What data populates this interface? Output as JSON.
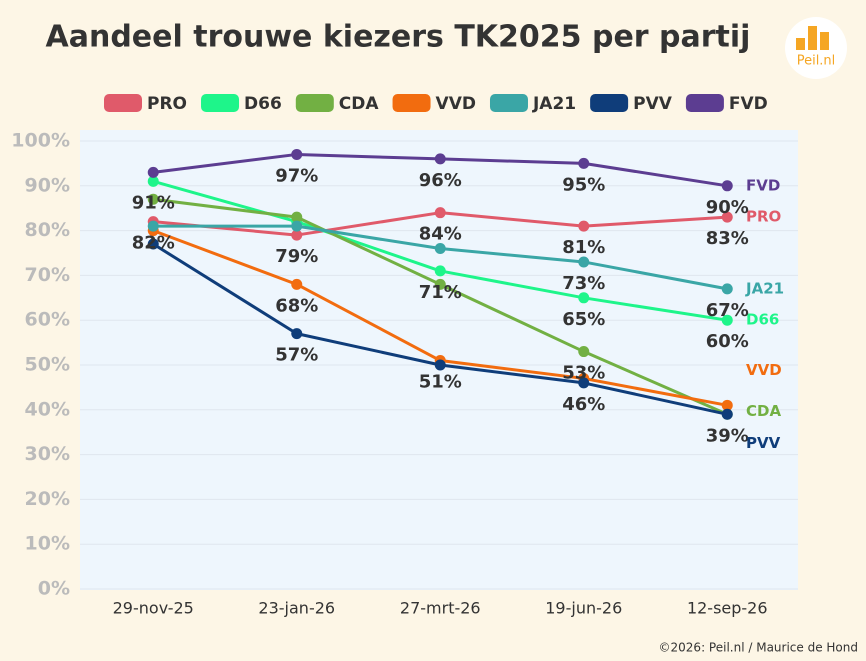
{
  "chart_data": {
    "type": "line",
    "title": "Aandeel trouwe kiezers TK2025 per partij",
    "logo": "Peil.nl",
    "footer": "©2026: Peil.nl / Maurice de Hond",
    "categories": [
      "29-nov-25",
      "23-jan-26",
      "27-mrt-26",
      "19-jun-26",
      "12-sep-26"
    ],
    "ylim": [
      0,
      100
    ],
    "yticks": [
      {
        "value": 0,
        "label": "0%"
      },
      {
        "value": 10,
        "label": "10%"
      },
      {
        "value": 20,
        "label": "20%"
      },
      {
        "value": 30,
        "label": "30%"
      },
      {
        "value": 40,
        "label": "40%"
      },
      {
        "value": 50,
        "label": "50%"
      },
      {
        "value": 60,
        "label": "60%"
      },
      {
        "value": 70,
        "label": "70%"
      },
      {
        "value": 80,
        "label": "80%"
      },
      {
        "value": 90,
        "label": "90%"
      },
      {
        "value": 100,
        "label": "100%"
      }
    ],
    "grid": true,
    "series": [
      {
        "name": "PRO",
        "color": "#e05a6a",
        "values": [
          82,
          79,
          84,
          81,
          83
        ],
        "value_labels": [
          "82%",
          "79%",
          "84%",
          "81%",
          "83%"
        ]
      },
      {
        "name": "D66",
        "color": "#1ef58a",
        "values": [
          91,
          82,
          71,
          65,
          60
        ],
        "value_labels": [
          "91%",
          null,
          "71%",
          "65%",
          "60%"
        ]
      },
      {
        "name": "CDA",
        "color": "#72b043",
        "values": [
          87,
          83,
          68,
          53,
          39
        ],
        "value_labels": [
          null,
          null,
          null,
          "53%",
          null
        ]
      },
      {
        "name": "VVD",
        "color": "#f26c0f",
        "values": [
          80,
          68,
          51,
          47,
          41
        ],
        "value_labels": [
          null,
          "68%",
          "51%",
          null,
          null
        ]
      },
      {
        "name": "JA21",
        "color": "#3aa6a6",
        "values": [
          81,
          81,
          76,
          73,
          67
        ],
        "value_labels": [
          null,
          null,
          null,
          "73%",
          "67%"
        ]
      },
      {
        "name": "PVV",
        "color": "#0f3d7a",
        "values": [
          77,
          57,
          50,
          46,
          39
        ],
        "value_labels": [
          null,
          "57%",
          null,
          "46%",
          "39%"
        ]
      },
      {
        "name": "FVD",
        "color": "#5c3d91",
        "values": [
          93,
          97,
          96,
          95,
          90
        ],
        "value_labels": [
          null,
          "97%",
          "96%",
          "95%",
          "90%"
        ]
      }
    ]
  }
}
